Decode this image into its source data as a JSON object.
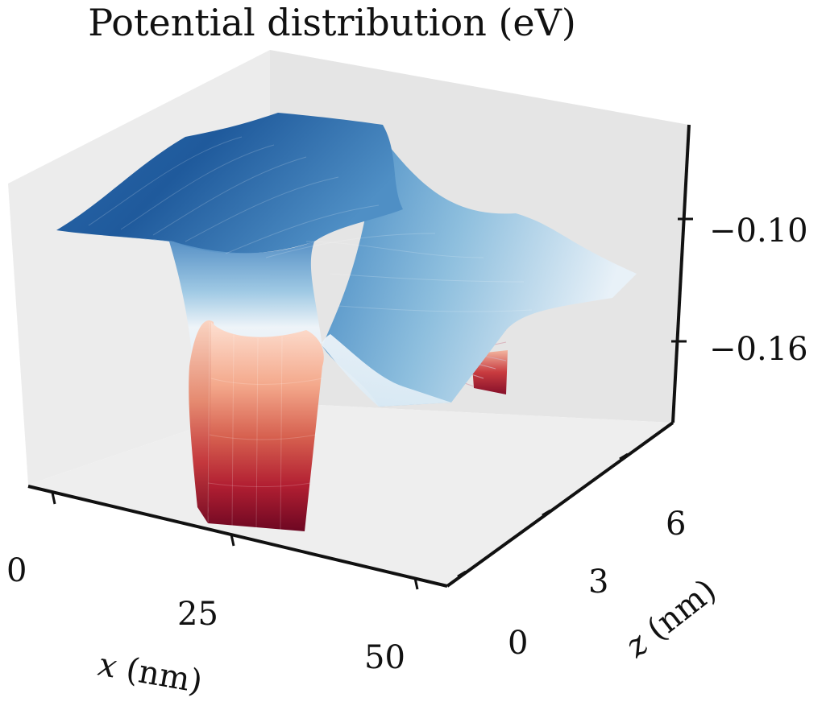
{
  "chart_data": {
    "type": "surface3d",
    "title": "Potential distribution (eV)",
    "xlabel_var": "x",
    "xlabel_unit": "(nm)",
    "zlabel_var": "z",
    "zlabel_unit": "(nm)",
    "xticks": [
      "0",
      "25",
      "50"
    ],
    "zticks": [
      "0",
      "3",
      "6"
    ],
    "vticks": [
      "−0.10",
      "−0.16"
    ],
    "xlim": [
      0,
      50
    ],
    "zlim": [
      0,
      8
    ],
    "vlim": [
      -0.2,
      -0.07
    ],
    "colormap": "RdBu",
    "colors": {
      "pane_left": "#ececec",
      "pane_back": "#e6e6e6",
      "pane_floor": "#ededed",
      "axis": "#111111",
      "high": "#1f5a9c",
      "low": "#7a0c25"
    },
    "description_values": {
      "plateau_level": -0.085,
      "well_level": -0.19,
      "shallow_region_level": -0.135
    }
  }
}
